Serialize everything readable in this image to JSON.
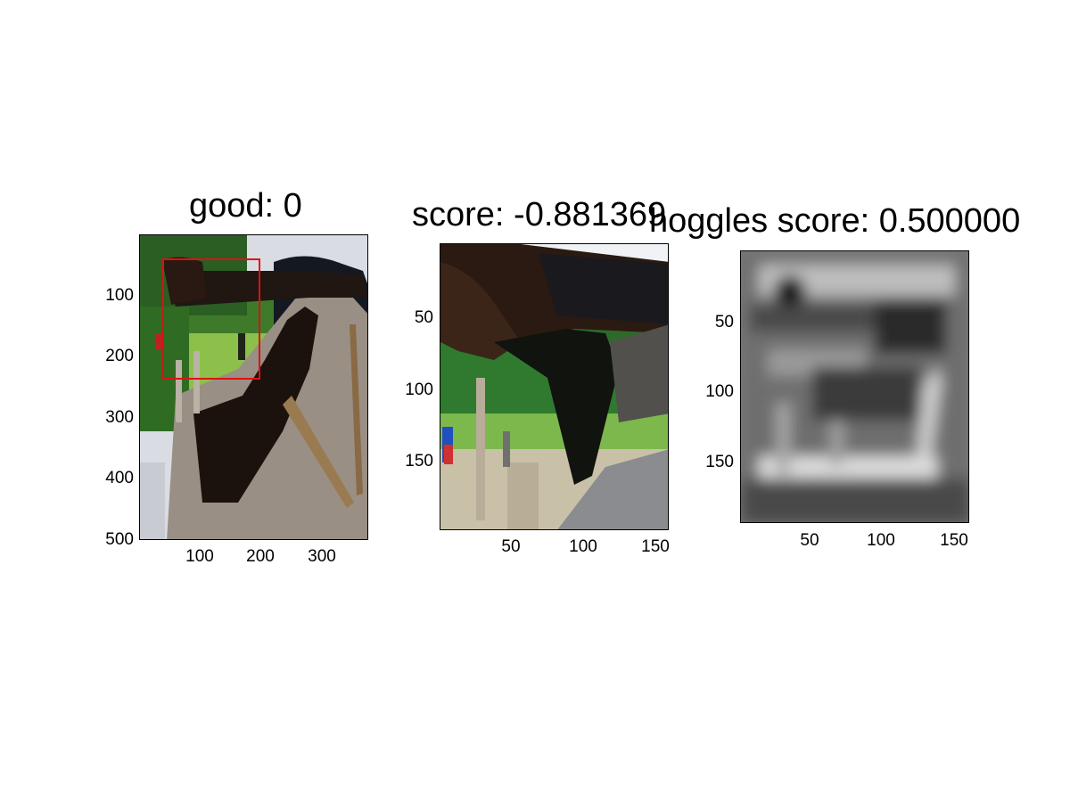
{
  "panels": [
    {
      "title": "good: 0",
      "image_semantics": "photo-person-holding-bird-with-crop-box",
      "yticks": [
        "100",
        "200",
        "300",
        "400",
        "500"
      ],
      "xticks": [
        "100",
        "200",
        "300"
      ],
      "box_color": "#e01010"
    },
    {
      "title": "score: -0.881369",
      "image_semantics": "cropped-photo-hand-and-bird",
      "yticks": [
        "50",
        "100",
        "150"
      ],
      "xticks": [
        "50",
        "100",
        "150"
      ]
    },
    {
      "title": "hoggles score: 0.500000",
      "image_semantics": "grayscale-hoggles-visualization",
      "yticks": [
        "50",
        "100",
        "150"
      ],
      "xticks": [
        "50",
        "100",
        "150"
      ]
    }
  ]
}
